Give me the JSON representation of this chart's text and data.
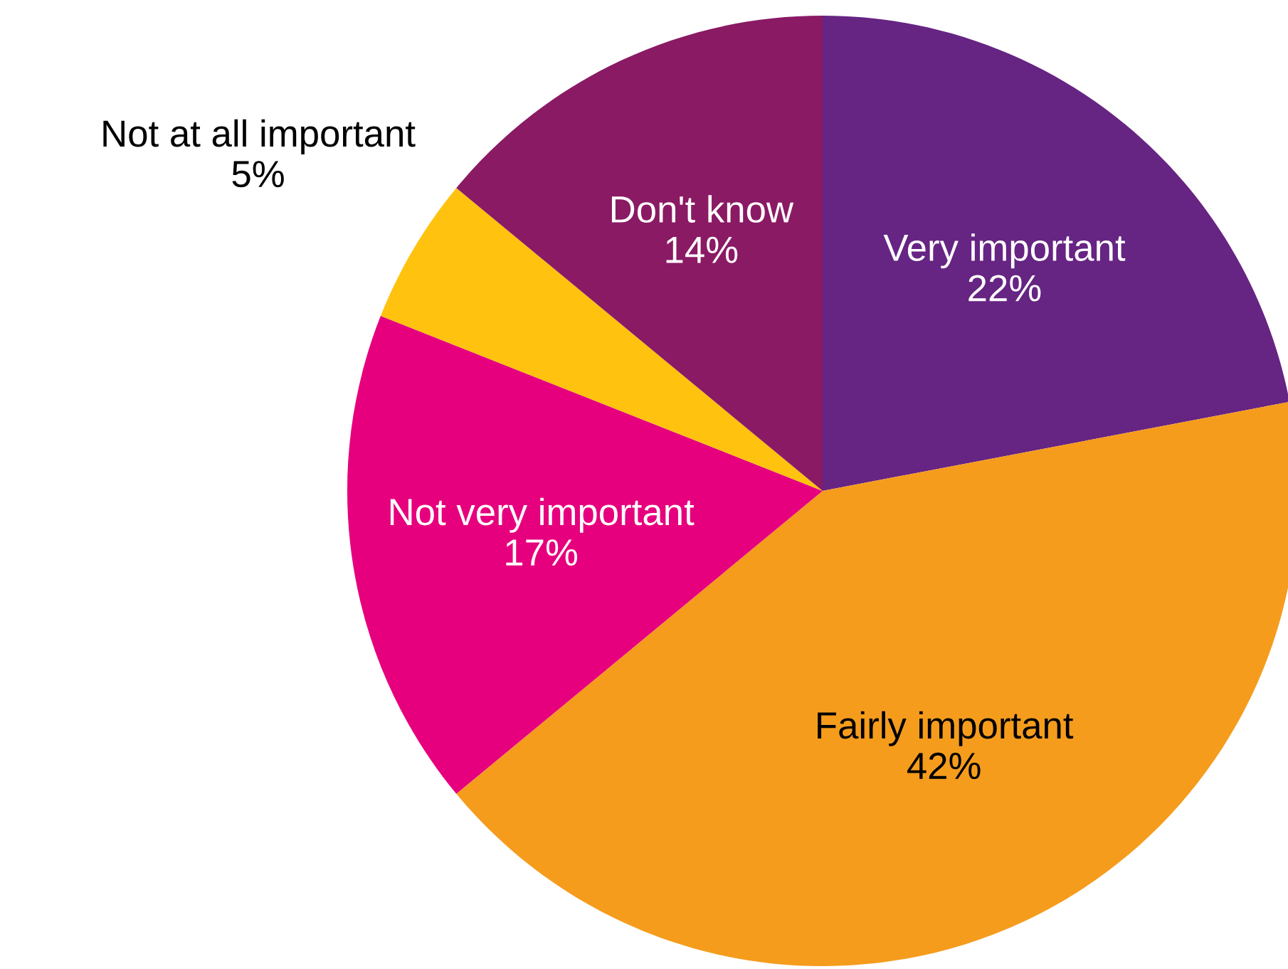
{
  "chart_data": {
    "type": "pie",
    "categories": [
      "Very important",
      "Fairly important",
      "Not very important",
      "Not at all important",
      "Don't know"
    ],
    "values": [
      22,
      42,
      17,
      5,
      14
    ],
    "value_labels": [
      "22%",
      "42%",
      "17%",
      "5%",
      "14%"
    ],
    "colors": [
      "#662483",
      "#f59c1d",
      "#e6007e",
      "#ffc20e",
      "#8a1a64"
    ],
    "legend": false
  }
}
